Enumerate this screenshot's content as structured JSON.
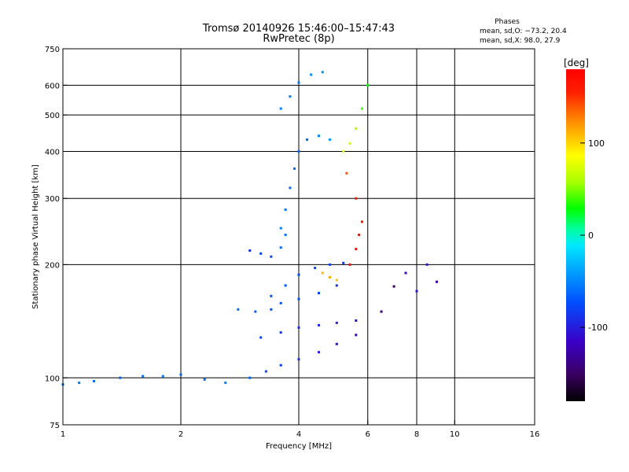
{
  "chart_data": {
    "type": "scatter",
    "title": "Tromsø 20140926 15:46:00–15:47:43",
    "subtitle": "RwPretec (8p)",
    "stats": {
      "heading": "Phases",
      "line_o": "mean, sd,O: −73.2, 20.4",
      "line_x": "mean, sd,X:  98.0, 27.9"
    },
    "xlabel": "Frequency [MHz]",
    "ylabel": "Stationary phase Virtual Height [km]",
    "x_scale": "log",
    "y_scale": "log",
    "xlim": [
      1,
      16
    ],
    "ylim": [
      75,
      750
    ],
    "x_ticks": [
      1,
      2,
      4,
      6,
      8,
      10,
      16
    ],
    "x_tick_labels": [
      "1",
      "2",
      "4",
      "6",
      "8",
      "10",
      "16"
    ],
    "y_ticks": [
      75,
      100,
      200,
      300,
      400,
      500,
      600,
      750
    ],
    "y_tick_labels": [
      "75",
      "100",
      "200",
      "300",
      "400",
      "500",
      "600",
      "750"
    ],
    "grid": true,
    "colorbar": {
      "label": "[deg]",
      "range": [
        -180,
        180
      ],
      "ticks": [
        100,
        0,
        -100
      ],
      "tick_labels": [
        "100",
        "0",
        "-100"
      ]
    },
    "series": [
      {
        "points": [
          [
            1.0,
            96,
            -60
          ],
          [
            1.1,
            97,
            -55
          ],
          [
            1.2,
            98,
            -60
          ],
          [
            1.4,
            100,
            -65
          ],
          [
            1.6,
            101,
            -60
          ],
          [
            1.8,
            101,
            -55
          ],
          [
            2.0,
            102,
            -65
          ],
          [
            2.3,
            99,
            -60
          ],
          [
            2.6,
            97,
            -55
          ],
          [
            3.0,
            100,
            -65
          ],
          [
            3.3,
            104,
            -75
          ],
          [
            3.6,
            108,
            -80
          ],
          [
            4.0,
            112,
            -90
          ],
          [
            4.5,
            117,
            -100
          ],
          [
            5.0,
            123,
            -110
          ],
          [
            5.6,
            130,
            -120
          ]
        ]
      },
      {
        "points": [
          [
            3.2,
            128,
            -80
          ],
          [
            3.6,
            132,
            -85
          ],
          [
            4.0,
            136,
            -90
          ],
          [
            4.5,
            138,
            -95
          ],
          [
            5.0,
            140,
            -100
          ],
          [
            5.6,
            142,
            -110
          ]
        ]
      },
      {
        "points": [
          [
            2.8,
            152,
            -60
          ],
          [
            3.1,
            150,
            -65
          ],
          [
            3.4,
            152,
            -70
          ],
          [
            3.6,
            158,
            -70
          ],
          [
            4.0,
            162,
            -75
          ],
          [
            4.5,
            168,
            -80
          ],
          [
            5.0,
            176,
            -85
          ]
        ]
      },
      {
        "points": [
          [
            3.4,
            165,
            -70
          ],
          [
            3.7,
            176,
            -70
          ],
          [
            4.0,
            188,
            -75
          ],
          [
            4.4,
            196,
            -75
          ],
          [
            4.8,
            200,
            -80
          ],
          [
            5.2,
            202,
            -90
          ]
        ]
      },
      {
        "points": [
          [
            3.0,
            218,
            -90
          ],
          [
            3.2,
            214,
            -80
          ],
          [
            3.4,
            210,
            -75
          ],
          [
            3.6,
            222,
            -60
          ],
          [
            3.7,
            240,
            -55
          ]
        ]
      },
      {
        "points": [
          [
            3.6,
            250,
            -50
          ],
          [
            3.7,
            280,
            -55
          ],
          [
            3.8,
            320,
            -60
          ],
          [
            3.9,
            360,
            -60
          ],
          [
            4.0,
            400,
            -65
          ],
          [
            4.2,
            430,
            -60
          ],
          [
            4.5,
            440,
            -50
          ],
          [
            4.8,
            430,
            -40
          ]
        ]
      },
      {
        "points": [
          [
            3.6,
            520,
            -50
          ],
          [
            3.8,
            560,
            -55
          ],
          [
            4.0,
            610,
            -55
          ],
          [
            4.3,
            640,
            -50
          ],
          [
            4.6,
            650,
            -45
          ]
        ]
      },
      {
        "points": [
          [
            4.6,
            190,
            110
          ],
          [
            4.8,
            185,
            115
          ],
          [
            5.0,
            182,
            105
          ]
        ]
      },
      {
        "points": [
          [
            5.4,
            200,
            170
          ],
          [
            5.6,
            220,
            175
          ],
          [
            5.7,
            240,
            165
          ],
          [
            5.8,
            260,
            170
          ],
          [
            5.6,
            300,
            160
          ],
          [
            5.3,
            350,
            140
          ]
        ]
      },
      {
        "points": [
          [
            5.2,
            400,
            80
          ],
          [
            5.4,
            420,
            70
          ],
          [
            5.6,
            460,
            60
          ],
          [
            5.8,
            520,
            40
          ],
          [
            6.0,
            600,
            30
          ]
        ]
      },
      {
        "points": [
          [
            6.5,
            150,
            -140
          ],
          [
            7.0,
            175,
            -150
          ],
          [
            7.5,
            190,
            -120
          ],
          [
            8.0,
            170,
            -110
          ],
          [
            8.5,
            200,
            -100
          ],
          [
            9.0,
            180,
            -130
          ]
        ]
      }
    ]
  }
}
